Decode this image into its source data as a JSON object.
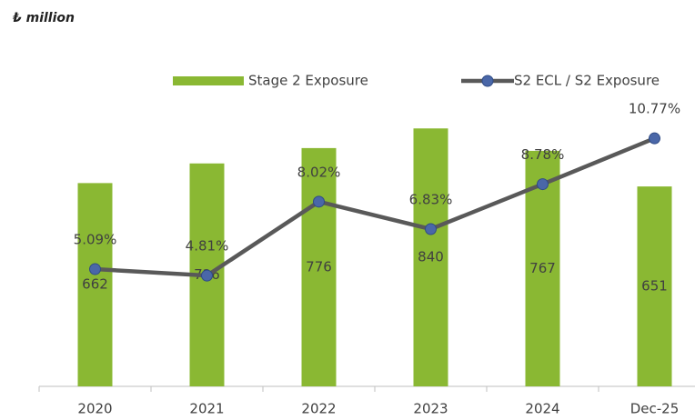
{
  "chart_data": {
    "type": "bar_line",
    "title": "₺ million",
    "categories": [
      "2020",
      "2021",
      "2022",
      "2023",
      "2024",
      "Dec-25"
    ],
    "series": [
      {
        "name": "Stage 2 Exposure",
        "color": "#8ab833",
        "values": [
          662,
          726,
          776,
          840,
          767,
          651
        ]
      },
      {
        "name": "S2 ECL / S2 Exposure",
        "color": "#595959",
        "marker_color": "#4a67a8",
        "axis": "y2",
        "values": [
          5.09,
          4.81,
          8.02,
          6.83,
          8.78,
          10.77
        ],
        "value_labels": [
          "5.09%",
          "4.81%",
          "8.02%",
          "6.83%",
          "8.78%",
          "10.77%"
        ]
      }
    ],
    "ylim": [
      0,
      900
    ],
    "y2lim": [
      0,
      12
    ],
    "legend": "top"
  }
}
